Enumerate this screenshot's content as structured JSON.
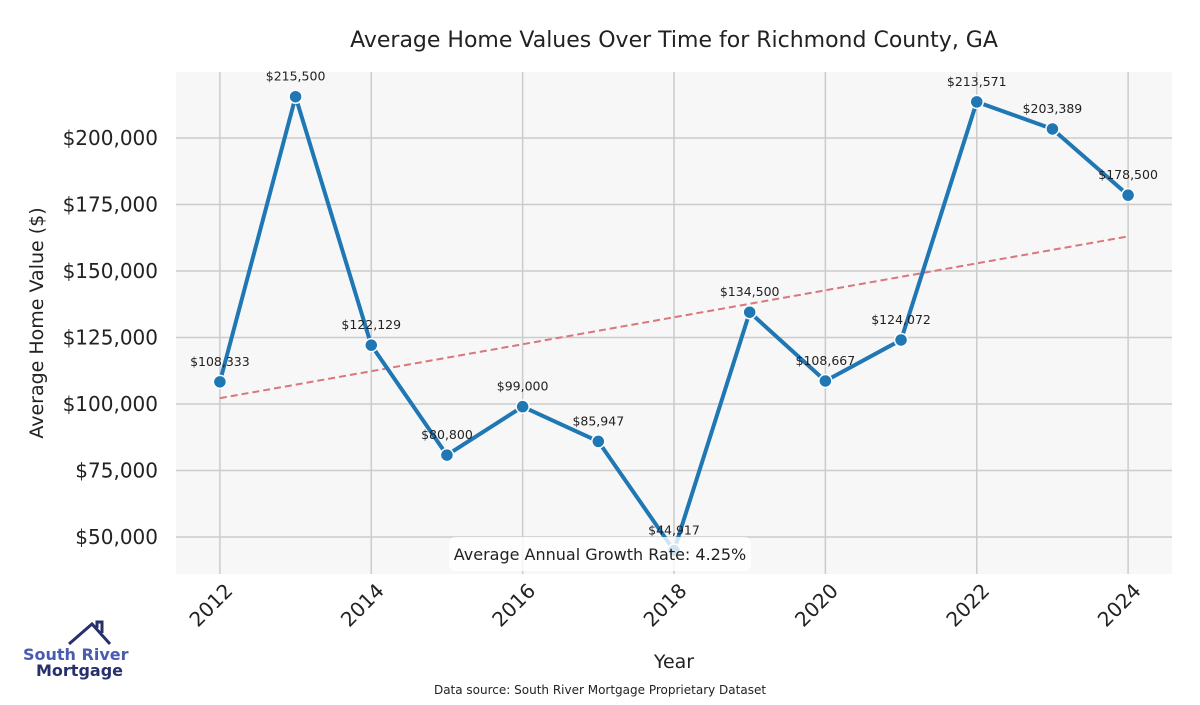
{
  "chart_data": {
    "type": "line",
    "title": "Average Home Values Over Time for Richmond County, GA",
    "xlabel": "Year",
    "ylabel": "Average Home Value ($)",
    "x": [
      2012,
      2013,
      2014,
      2015,
      2016,
      2017,
      2018,
      2019,
      2020,
      2021,
      2022,
      2023,
      2024
    ],
    "series": [
      {
        "name": "Average Home Value",
        "color": "#1f77b4",
        "values": [
          108333,
          215500,
          122129,
          80800,
          99000,
          85947,
          44917,
          134500,
          108667,
          124072,
          213571,
          203389,
          178500
        ],
        "labels": [
          "$108,333",
          "$215,500",
          "$122,129",
          "$80,800",
          "$99,000",
          "$85,947",
          "$44,917",
          "$134,500",
          "$108,667",
          "$124,072",
          "$213,571",
          "$203,389",
          "$178,500"
        ]
      },
      {
        "name": "Trend",
        "color": "#d9777a",
        "style": "dashed",
        "x": [
          2012,
          2024
        ],
        "values": [
          102200,
          163000
        ]
      }
    ],
    "xticks": [
      "2012",
      "2014",
      "2016",
      "2018",
      "2020",
      "2022",
      "2024"
    ],
    "yticks": [
      50000,
      75000,
      100000,
      125000,
      150000,
      175000,
      200000
    ],
    "ytick_labels": [
      "$50,000",
      "$75,000",
      "$100,000",
      "$125,000",
      "$150,000",
      "$175,000",
      "$200,000"
    ],
    "xlim": [
      2011.42,
      2024.58
    ],
    "ylim": [
      36100,
      224800
    ],
    "grid": true,
    "annotation": "Average Annual Growth Rate: 4.25%"
  },
  "footer": {
    "source": "Data source: South River Mortgage Proprietary Dataset",
    "logo_line1": "South River",
    "logo_line2": "Mortgage"
  }
}
